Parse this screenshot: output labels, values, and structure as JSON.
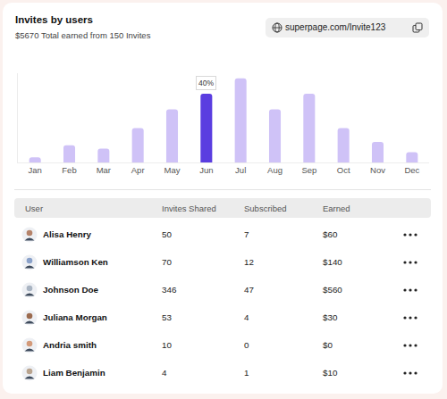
{
  "header": {
    "title": "Invites by users",
    "subtitle": "$5670 Total earned from 150 Invites",
    "link": "superpage.com/Invite123"
  },
  "chart_data": {
    "type": "bar",
    "categories": [
      "Jan",
      "Feb",
      "Mar",
      "Apr",
      "May",
      "Jun",
      "Jul",
      "Aug",
      "Sep",
      "Oct",
      "Nov",
      "Dec"
    ],
    "values": [
      3,
      10,
      8,
      20,
      31,
      40,
      49,
      31,
      40,
      20,
      12,
      6
    ],
    "colors": [
      "#cfc2f7",
      "#cfc2f7",
      "#cfc2f7",
      "#cfc2f7",
      "#cfc2f7",
      "#5a3de0",
      "#cfc2f7",
      "#cfc2f7",
      "#cfc2f7",
      "#cfc2f7",
      "#cfc2f7",
      "#cfc2f7"
    ],
    "ylim": [
      0,
      52
    ],
    "yticks": [],
    "grid": false,
    "tick_labels": "x",
    "annotations": [
      {
        "x": "Jun",
        "y": 40,
        "text": "40%"
      }
    ]
  },
  "table": {
    "columns": [
      "User",
      "Invites Shared",
      "Subscribed",
      "Earned"
    ],
    "rows": [
      [
        "Alisa Henry",
        50,
        7,
        "$60"
      ],
      [
        "Williamson Ken",
        70,
        12,
        "$140"
      ],
      [
        "Johnson Doe",
        346,
        47,
        "$560"
      ],
      [
        "Juliana Morgan",
        53,
        4,
        "$30"
      ],
      [
        "Andria smith",
        10,
        0,
        "$0"
      ],
      [
        "Liam Benjamin",
        4,
        1,
        "$10"
      ]
    ]
  }
}
